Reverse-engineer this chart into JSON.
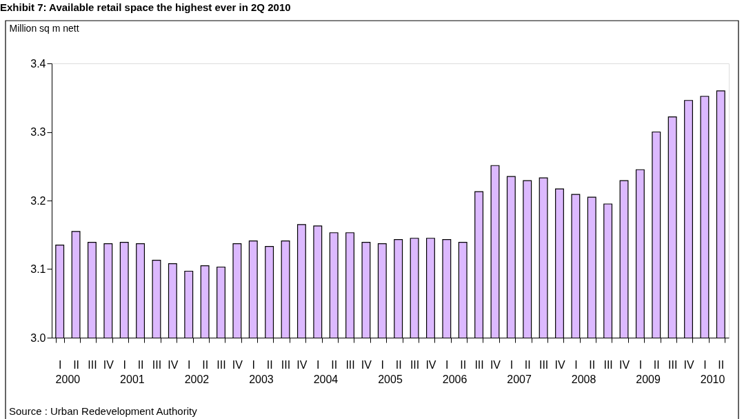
{
  "chart_data": {
    "type": "bar",
    "title": "Exhibit 7: Available retail space the highest ever in 2Q 2010",
    "ylabel": "Million sq m nett",
    "categories": [
      "I",
      "II",
      "III",
      "IV",
      "I",
      "II",
      "III",
      "IV",
      "I",
      "II",
      "III",
      "IV",
      "I",
      "II",
      "III",
      "IV",
      "I",
      "II",
      "III",
      "IV",
      "I",
      "II",
      "III",
      "IV",
      "I",
      "II",
      "III",
      "IV",
      "I",
      "II",
      "III",
      "IV",
      "I",
      "II",
      "III",
      "IV",
      "I",
      "II",
      "III",
      "IV",
      "I",
      "II"
    ],
    "values": [
      3.135,
      3.155,
      3.139,
      3.137,
      3.139,
      3.137,
      3.113,
      3.108,
      3.097,
      3.105,
      3.103,
      3.137,
      3.141,
      3.133,
      3.141,
      3.165,
      3.163,
      3.153,
      3.153,
      3.139,
      3.137,
      3.143,
      3.145,
      3.145,
      3.143,
      3.139,
      3.213,
      3.251,
      3.235,
      3.229,
      3.233,
      3.217,
      3.209,
      3.205,
      3.195,
      3.229,
      3.245,
      3.3,
      3.322,
      3.346,
      3.352,
      3.36
    ],
    "color": "#dcb9ff",
    "ylim": [
      3.0,
      3.4
    ],
    "yticks": [
      {
        "value": 3,
        "label": "3.0"
      },
      3.1,
      3.2,
      3.3,
      3.4
    ],
    "annotations": [
      "2000",
      "2001",
      "2002",
      "2003",
      "2004",
      "2005",
      "2006",
      "2007",
      "2008",
      "2009",
      "2010",
      "Source : Urban Redevelopment Authority"
    ]
  }
}
